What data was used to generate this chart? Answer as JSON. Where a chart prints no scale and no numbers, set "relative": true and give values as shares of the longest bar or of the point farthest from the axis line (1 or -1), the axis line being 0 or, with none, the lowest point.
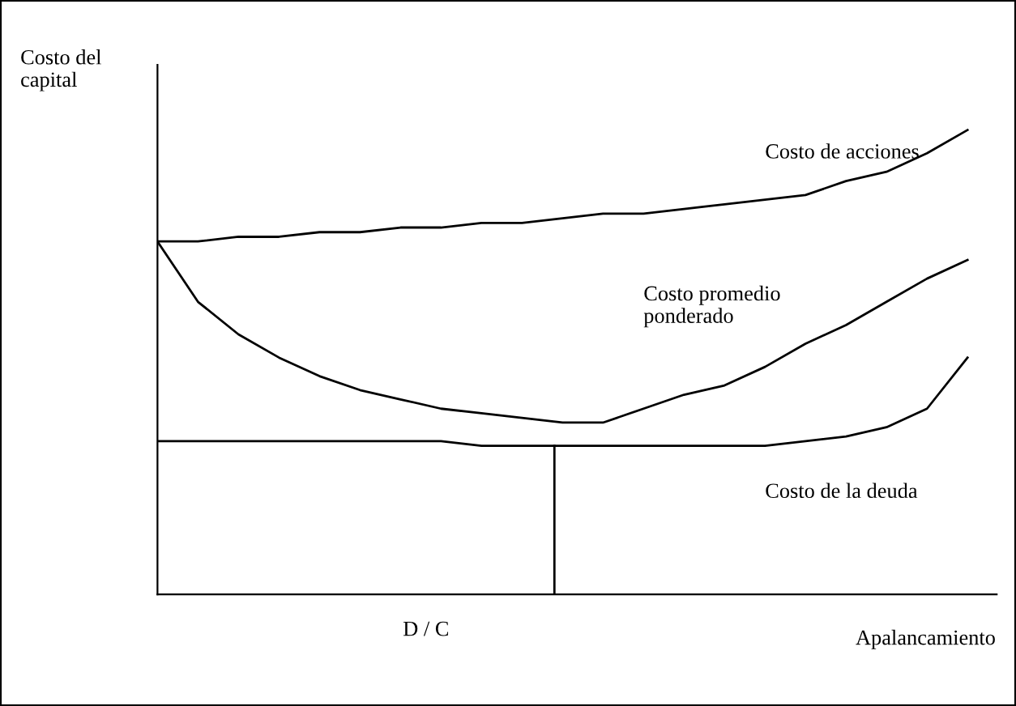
{
  "chart_data": {
    "type": "line",
    "relative": true,
    "ylabel": "Costo del\ncapital",
    "xlabel": "Apalancamiento",
    "categories": [
      null,
      null,
      null,
      null,
      null,
      null,
      null,
      null,
      null,
      null,
      null,
      null,
      null,
      null,
      null,
      null,
      null,
      null,
      null,
      null,
      null
    ],
    "series": [
      {
        "name": "Costo de acciones",
        "color": "#000000",
        "values": [
          0.76,
          0.76,
          0.77,
          0.77,
          0.78,
          0.78,
          0.79,
          0.79,
          0.8,
          0.8,
          0.81,
          0.82,
          0.82,
          0.83,
          0.84,
          0.85,
          0.86,
          0.89,
          0.91,
          0.95,
          1.0
        ]
      },
      {
        "name": "Costo promedio\nponderado",
        "color": "#000000",
        "values": [
          0.76,
          0.63,
          0.56,
          0.51,
          0.47,
          0.44,
          0.42,
          0.4,
          0.39,
          0.38,
          0.37,
          0.37,
          0.4,
          0.43,
          0.45,
          0.49,
          0.54,
          0.58,
          0.63,
          0.68,
          0.72
        ]
      },
      {
        "name": "Costo de la deuda",
        "color": "#000000",
        "values": [
          0.33,
          0.33,
          0.33,
          0.33,
          0.33,
          0.33,
          0.33,
          0.33,
          0.32,
          0.32,
          0.32,
          0.32,
          0.32,
          0.32,
          0.32,
          0.32,
          0.33,
          0.34,
          0.36,
          0.4,
          0.51
        ]
      }
    ],
    "annotations": [
      "D / C"
    ],
    "marker": "none",
    "line_style": "solid"
  }
}
